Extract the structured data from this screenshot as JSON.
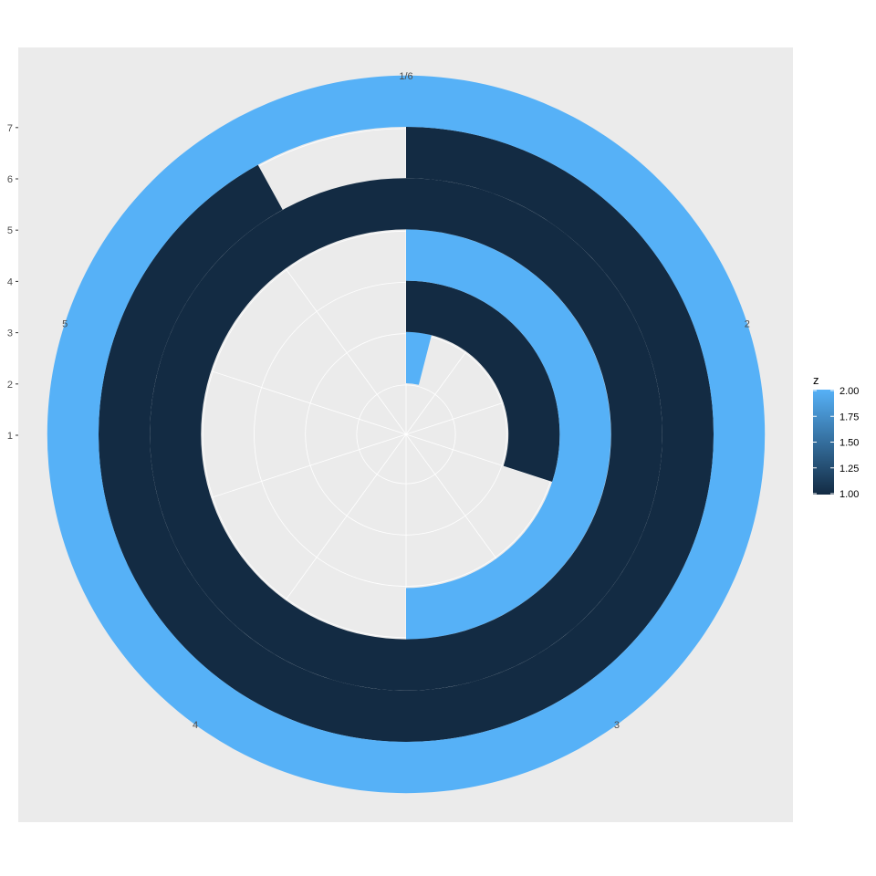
{
  "chart_data": {
    "type": "polar_bar",
    "title": "",
    "theta": {
      "breaks": [
        1,
        2,
        3,
        4,
        5,
        6
      ],
      "labels": [
        "1/6",
        "2",
        "3",
        "4",
        "5"
      ],
      "range": [
        1,
        6
      ]
    },
    "radius": {
      "breaks": [
        1,
        2,
        3,
        4,
        5,
        6,
        7
      ],
      "labels": [
        "1",
        "2",
        "3",
        "4",
        "5",
        "6",
        "7"
      ],
      "range": [
        0,
        7.6
      ]
    },
    "grid": true,
    "bars": [
      {
        "ring": 1,
        "theta_start": 1,
        "theta_end": 1.2,
        "z": 2
      },
      {
        "ring": 2,
        "theta_start": 1,
        "theta_end": 2.5,
        "z": 1
      },
      {
        "ring": 3,
        "theta_start": 1,
        "theta_end": 3.5,
        "z": 2
      },
      {
        "ring": 4,
        "theta_start": 1,
        "theta_end": 6.0,
        "z": 1
      },
      {
        "ring": 5,
        "theta_start": 1,
        "theta_end": 5.6,
        "z": 1
      },
      {
        "ring": 6,
        "theta_start": 1,
        "theta_end": 6.0,
        "z": 2
      },
      {
        "ring": 6,
        "theta_start": 1,
        "theta_end": 6.0,
        "z": 2
      }
    ],
    "legend": {
      "title": "z",
      "position": "right",
      "breaks": [
        1.0,
        1.25,
        1.5,
        1.75,
        2.0
      ],
      "labels": [
        "1.00",
        "1.25",
        "1.50",
        "1.75",
        "2.00"
      ],
      "range": [
        1,
        2
      ],
      "color_low": "#132B43",
      "color_high": "#56B1F7"
    }
  },
  "colors": {
    "panel_bg": "#ebebeb",
    "grid": "#ffffff"
  }
}
